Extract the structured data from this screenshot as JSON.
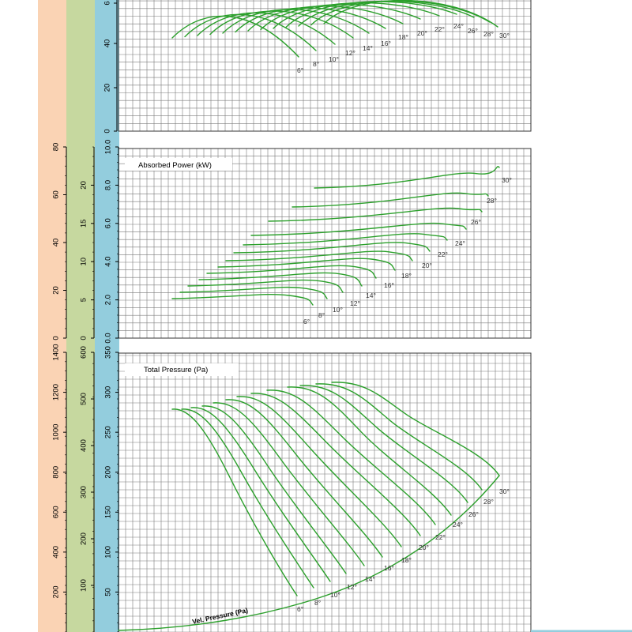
{
  "colors": {
    "curve": "#2ca02c",
    "grid": "#7a7a7a",
    "band_peach": "#fad3b4",
    "band_green": "#c6d89f",
    "band_blue": "#93cddd"
  },
  "chart_data": [
    {
      "type": "line",
      "panel": "top",
      "title": "",
      "visible_y_ticks": [
        "0",
        "20",
        "40",
        "6"
      ],
      "blade_angle_labels": [
        "6°",
        "8°",
        "10°",
        "12°",
        "14°",
        "16°",
        "18°",
        "20°",
        "22°",
        "24°",
        "26°",
        "28°",
        "30°"
      ],
      "ylim": [
        0,
        60
      ],
      "grid": true
    },
    {
      "type": "line",
      "panel": "absorbed-power",
      "title": "Absorbed Power (kW)",
      "blue_axis": {
        "ticks": [
          "0.0",
          "2.0",
          "4.0",
          "6.0",
          "8.0",
          "10.0"
        ],
        "range": [
          0,
          10
        ]
      },
      "green_axis": {
        "ticks": [
          "0",
          "5",
          "10",
          "15",
          "20"
        ],
        "range": [
          0,
          25
        ]
      },
      "peach_axis": {
        "ticks": [
          "0",
          "20",
          "40",
          "60",
          "80"
        ],
        "range": [
          0,
          80
        ]
      },
      "blade_angle_labels": [
        "6°",
        "8°",
        "10°",
        "12°",
        "14°",
        "16°",
        "18°",
        "20°",
        "22°",
        "24°",
        "26°",
        "28°",
        "30°"
      ],
      "grid": true
    },
    {
      "type": "line",
      "panel": "total-pressure",
      "title": "Total Pressure (Pa)",
      "curve_label": "Vel. Pressure (Pa)",
      "blue_axis": {
        "ticks": [
          "50",
          "100",
          "150",
          "200",
          "250",
          "300",
          "350"
        ],
        "range": [
          0,
          350
        ]
      },
      "green_axis": {
        "ticks": [
          "100",
          "200",
          "300",
          "400",
          "500",
          "600"
        ],
        "range": [
          0,
          600
        ]
      },
      "peach_axis": {
        "ticks": [
          "200",
          "400",
          "600",
          "800",
          "1000",
          "1200",
          "1400"
        ],
        "range": [
          0,
          1400
        ]
      },
      "blade_angle_labels": [
        "6°",
        "8°",
        "10°",
        "12°",
        "14°",
        "16°",
        "18°",
        "20°",
        "22°",
        "24°",
        "26°",
        "28°",
        "30°"
      ],
      "grid": true
    }
  ]
}
